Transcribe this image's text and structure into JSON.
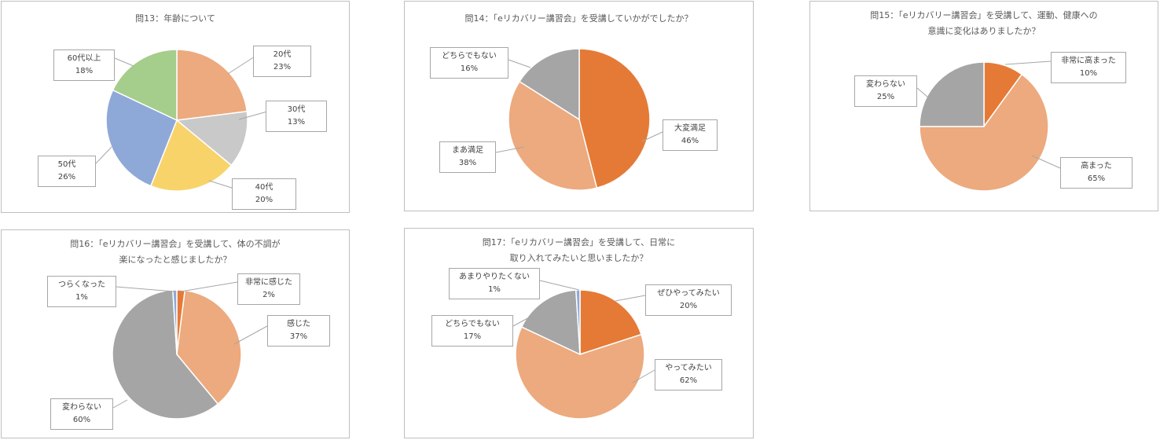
{
  "colors": {
    "orange": "#ed7d31",
    "lightorange": "#ecaa7e",
    "gray": "#a5a5a5",
    "lightgray": "#c9c9c9",
    "yellow": "#f8d36a",
    "blue": "#8ea9d8",
    "green": "#a5cd8b"
  },
  "chart_data": [
    {
      "type": "pie",
      "title": "問13：年齢について",
      "slices": [
        {
          "label": "20代",
          "value": 23,
          "pct_label": "23%",
          "color": "#ecaa7e"
        },
        {
          "label": "30代",
          "value": 13,
          "pct_label": "13%",
          "color": "#c9c9c9"
        },
        {
          "label": "40代",
          "value": 20,
          "pct_label": "20%",
          "color": "#f8d36a"
        },
        {
          "label": "50代",
          "value": 26,
          "pct_label": "26%",
          "color": "#8ea9d8"
        },
        {
          "label": "60代以上",
          "value": 18,
          "pct_label": "18%",
          "color": "#a5cd8b"
        }
      ]
    },
    {
      "type": "pie",
      "title": "問14：「eリカバリー講習会」を受講していかがでしたか？",
      "slices": [
        {
          "label": "大変満足",
          "value": 46,
          "pct_label": "46%",
          "color": "#e57a36"
        },
        {
          "label": "まあ満足",
          "value": 38,
          "pct_label": "38%",
          "color": "#ecaa7e"
        },
        {
          "label": "どちらでもない",
          "value": 16,
          "pct_label": "16%",
          "color": "#a5a5a5"
        }
      ]
    },
    {
      "type": "pie",
      "title": "問15：「eリカバリー講習会」を受講して、運動、健康への意識に変化はありましたか？",
      "title_lines": [
        "問15：「eリカバリー講習会」を受講して、運動、健康への",
        "意識に変化はありましたか？"
      ],
      "slices": [
        {
          "label": "非常に高まった",
          "value": 10,
          "pct_label": "10%",
          "color": "#e57a36"
        },
        {
          "label": "高まった",
          "value": 65,
          "pct_label": "65%",
          "color": "#ecaa7e"
        },
        {
          "label": "変わらない",
          "value": 25,
          "pct_label": "25%",
          "color": "#a5a5a5"
        }
      ]
    },
    {
      "type": "pie",
      "title": "問16：「eリカバリー講習会」を受講して、体の不調が楽になったと感じましたか？",
      "title_lines": [
        "問16：「eリカバリー講習会」を受講して、体の不調が",
        "楽になったと感じましたか？"
      ],
      "slices": [
        {
          "label": "非常に感じた",
          "value": 2,
          "pct_label": "2%",
          "color": "#e57a36"
        },
        {
          "label": "感じた",
          "value": 37,
          "pct_label": "37%",
          "color": "#ecaa7e"
        },
        {
          "label": "変わらない",
          "value": 60,
          "pct_label": "60%",
          "color": "#a5a5a5"
        },
        {
          "label": "つらくなった",
          "value": 1,
          "pct_label": "1%",
          "color": "#8ea9d8"
        }
      ]
    },
    {
      "type": "pie",
      "title": "問17：「eリカバリー講習会」を受講して、日常に取り入れてみたいと思いましたか？",
      "title_lines": [
        "問17：「eリカバリー講習会」を受講して、日常に",
        "取り入れてみたいと思いましたか？"
      ],
      "slices": [
        {
          "label": "ぜひやってみたい",
          "value": 20,
          "pct_label": "20%",
          "color": "#e57a36"
        },
        {
          "label": "やってみたい",
          "value": 62,
          "pct_label": "62%",
          "color": "#ecaa7e"
        },
        {
          "label": "どちらでもない",
          "value": 17,
          "pct_label": "17%",
          "color": "#a5a5a5"
        },
        {
          "label": "あまりやりたくない",
          "value": 1,
          "pct_label": "1%",
          "color": "#8ea9d8"
        }
      ]
    }
  ]
}
